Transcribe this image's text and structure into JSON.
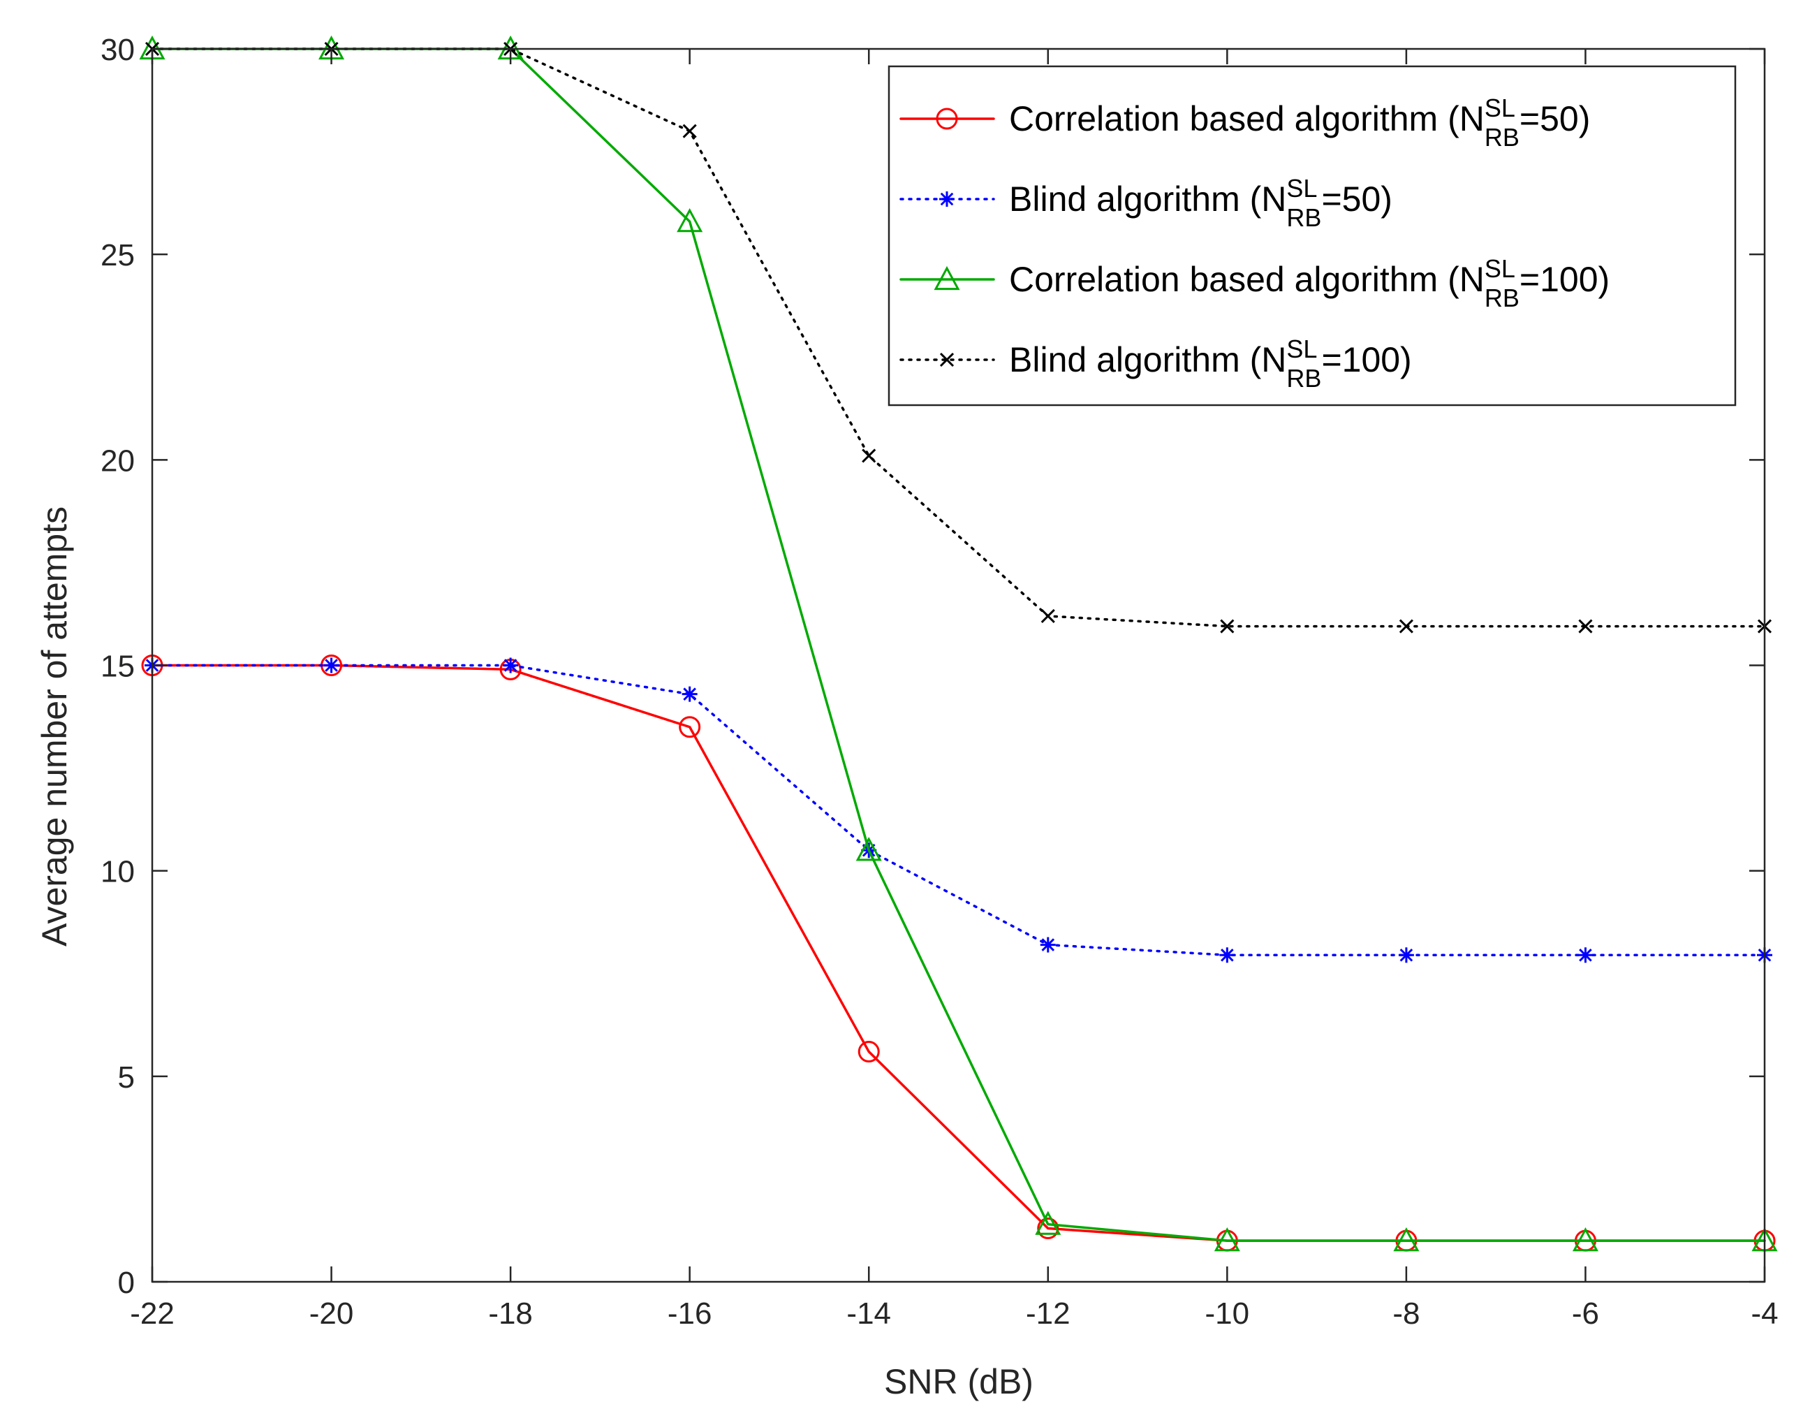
{
  "chart_data": {
    "type": "line",
    "title": "",
    "xlabel": "SNR (dB)",
    "ylabel": "Average number of attempts",
    "xlim": [
      -22,
      -4
    ],
    "ylim": [
      0,
      30
    ],
    "xticks": [
      -22,
      -20,
      -18,
      -16,
      -14,
      -12,
      -10,
      -8,
      -6,
      -4
    ],
    "yticks": [
      0,
      5,
      10,
      15,
      20,
      25,
      30
    ],
    "grid": false,
    "legend_position": "top-right",
    "x": [
      -22,
      -20,
      -18,
      -16,
      -14,
      -12,
      -10,
      -8,
      -6,
      -4
    ],
    "series": [
      {
        "name": "Correlation based algorithm (N_RB^SL=50)",
        "legend": {
          "prefix": "Correlation based algorithm (N",
          "sup": "SL",
          "sub": "RB",
          "suffix": "=50)"
        },
        "values": [
          15,
          15,
          14.9,
          13.5,
          5.6,
          1.3,
          1.0,
          1.0,
          1.0,
          1.0
        ],
        "color": "#ff0000",
        "line": "solid",
        "marker": "circle"
      },
      {
        "name": "Blind algorithm (N_RB^SL=50)",
        "legend": {
          "prefix": "Blind algorithm (N",
          "sup": "SL",
          "sub": "RB",
          "suffix": "=50)"
        },
        "values": [
          15,
          15,
          15,
          14.3,
          10.5,
          8.2,
          7.95,
          7.95,
          7.95,
          7.95
        ],
        "color": "#0000ff",
        "line": "dotted",
        "marker": "asterisk"
      },
      {
        "name": "Correlation based algorithm (N_RB^SL=100)",
        "legend": {
          "prefix": "Correlation based algorithm (N",
          "sup": "SL",
          "sub": "RB",
          "suffix": "=100)"
        },
        "values": [
          30,
          30,
          30,
          25.8,
          10.5,
          1.4,
          1.0,
          1.0,
          1.0,
          1.0
        ],
        "color": "#00aa00",
        "line": "solid",
        "marker": "triangle"
      },
      {
        "name": "Blind algorithm (N_RB^SL=100)",
        "legend": {
          "prefix": "Blind algorithm (N",
          "sup": "SL",
          "sub": "RB",
          "suffix": "=100)"
        },
        "values": [
          30,
          30,
          30,
          28,
          20.1,
          16.2,
          15.95,
          15.95,
          15.95,
          15.95
        ],
        "color": "#000000",
        "line": "dotted",
        "marker": "x"
      }
    ]
  }
}
